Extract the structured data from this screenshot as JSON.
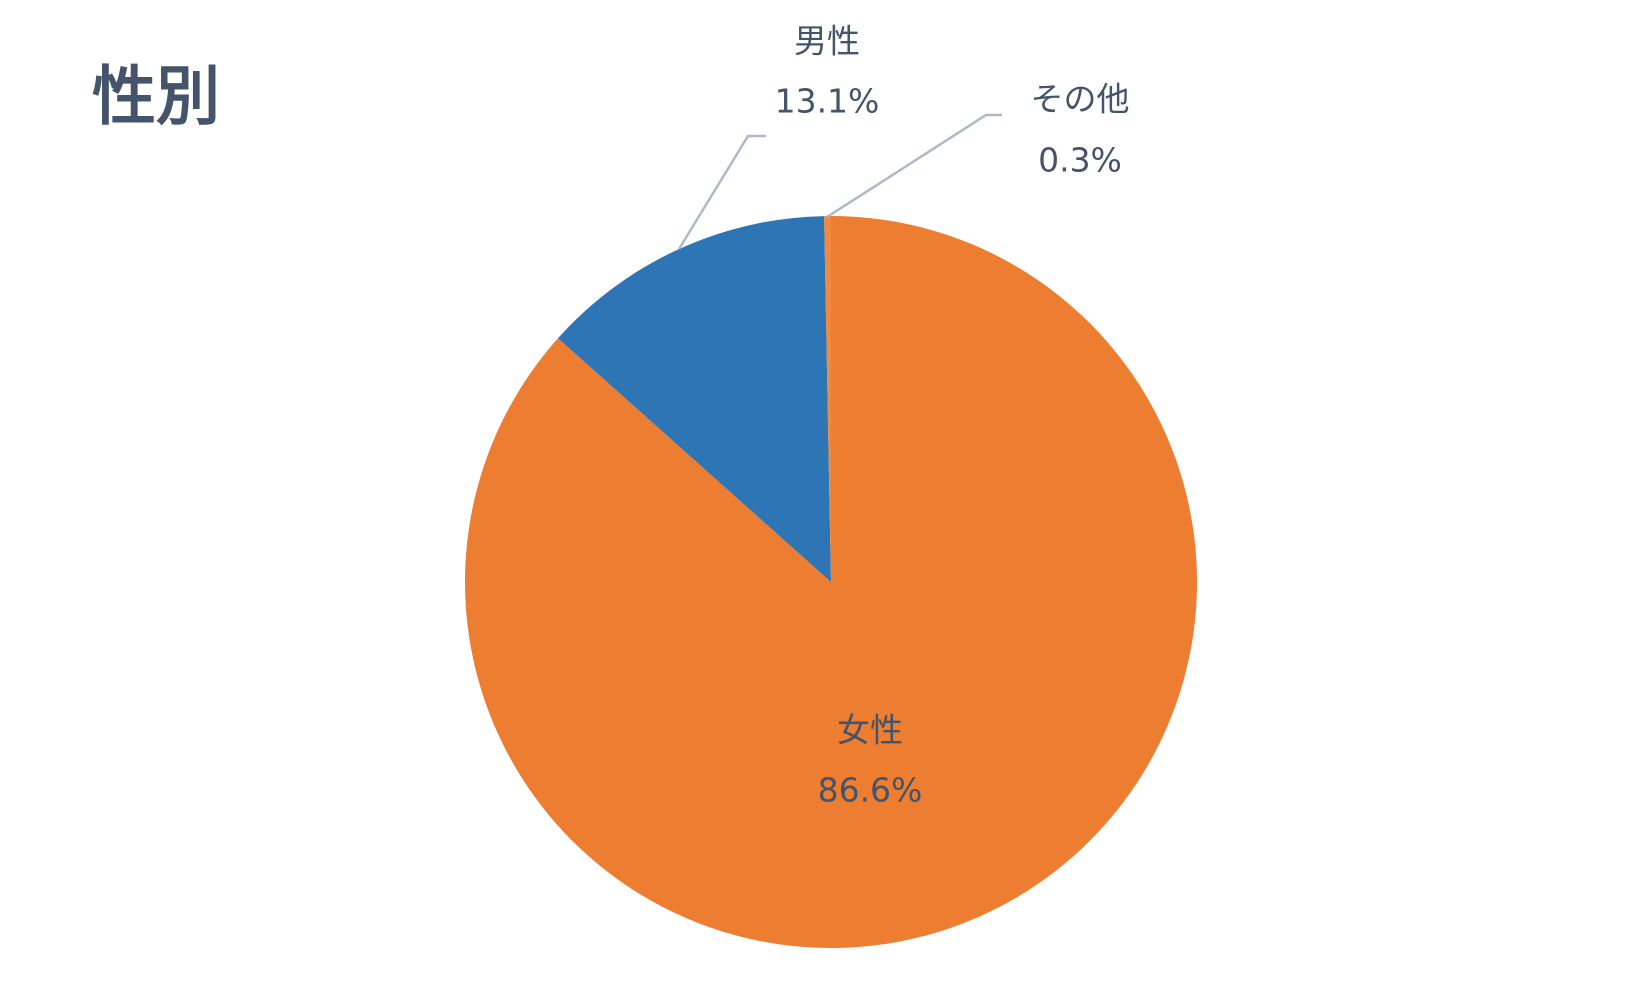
{
  "chart_data": {
    "type": "pie",
    "title": "性別",
    "categories": [
      "女性",
      "男性",
      "その他"
    ],
    "values": [
      86.6,
      13.1,
      0.3
    ],
    "value_labels": [
      "86.6%",
      "13.1%",
      "0.3%"
    ],
    "colors": [
      "#ED7D31",
      "#2E75B6",
      "#F0883E"
    ]
  }
}
